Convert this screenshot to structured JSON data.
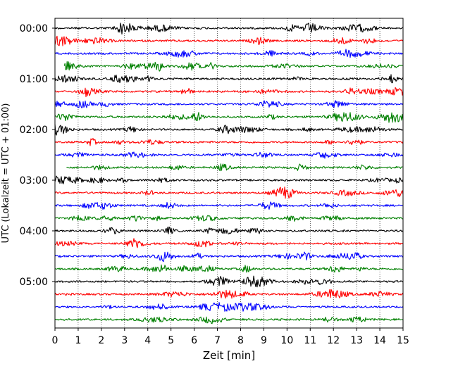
{
  "chart_data": {
    "type": "line",
    "title": "",
    "xlabel": "Zeit  [min]",
    "ylabel": "UTC (Lokalzeit = UTC + 01:00)",
    "xlim": [
      0,
      15
    ],
    "x_ticks": [
      "0",
      "1",
      "2",
      "3",
      "4",
      "5",
      "6",
      "7",
      "8",
      "9",
      "10",
      "11",
      "12",
      "13",
      "14",
      "15"
    ],
    "y_tick_labels": [
      "00:00",
      "01:00",
      "02:00",
      "03:00",
      "04:00",
      "05:00"
    ],
    "grid": "vertical dotted",
    "trace_interval_minutes": 15,
    "trace_count": 24,
    "trace_color_cycle": [
      "#000000",
      "#ff0000",
      "#0000ff",
      "#008000"
    ],
    "trace_start_times": [
      "00:00",
      "00:15",
      "00:30",
      "00:45",
      "01:00",
      "01:15",
      "01:30",
      "01:45",
      "02:00",
      "02:15",
      "02:30",
      "02:45",
      "03:00",
      "03:15",
      "03:30",
      "03:45",
      "04:00",
      "04:15",
      "04:30",
      "04:45",
      "05:00",
      "05:15",
      "05:30",
      "05:45"
    ]
  }
}
